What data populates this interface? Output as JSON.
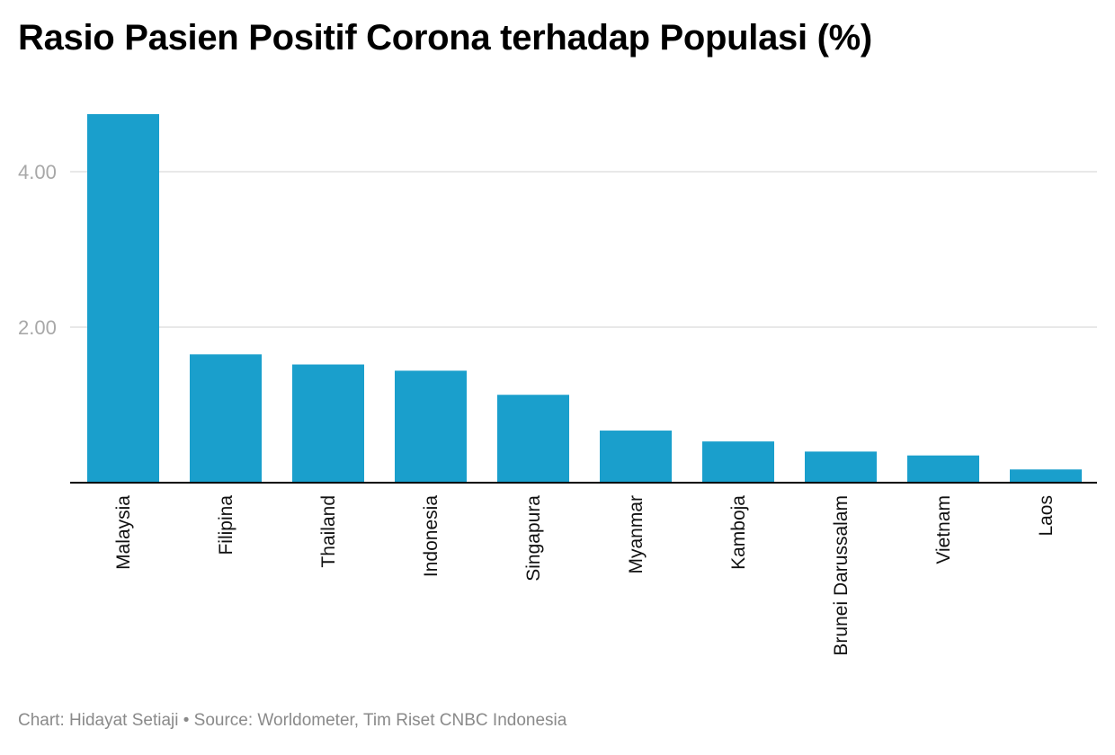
{
  "chart_data": {
    "type": "bar",
    "title": "Rasio Pasien Positif Corona terhadap Populasi (%)",
    "xlabel": "",
    "ylabel": "",
    "categories": [
      "Malaysia",
      "Filipina",
      "Thailand",
      "Indonesia",
      "Singapura",
      "Myanmar",
      "Kamboja",
      "Brunei Darussalam",
      "Vietnam",
      "Laos"
    ],
    "values": [
      4.74,
      1.65,
      1.52,
      1.44,
      1.13,
      0.67,
      0.53,
      0.4,
      0.35,
      0.17
    ],
    "ylim": [
      0,
      4.74
    ],
    "yticks": [
      2.0,
      4.0
    ],
    "ytick_labels": [
      "2.00",
      "4.00"
    ],
    "grid": true,
    "bar_color": "#1a9fcc",
    "legend": "none"
  },
  "footer": {
    "credit": "Chart: Hidayat Setiaji • Source: Worldometer, Tim Riset CNBC Indonesia"
  }
}
